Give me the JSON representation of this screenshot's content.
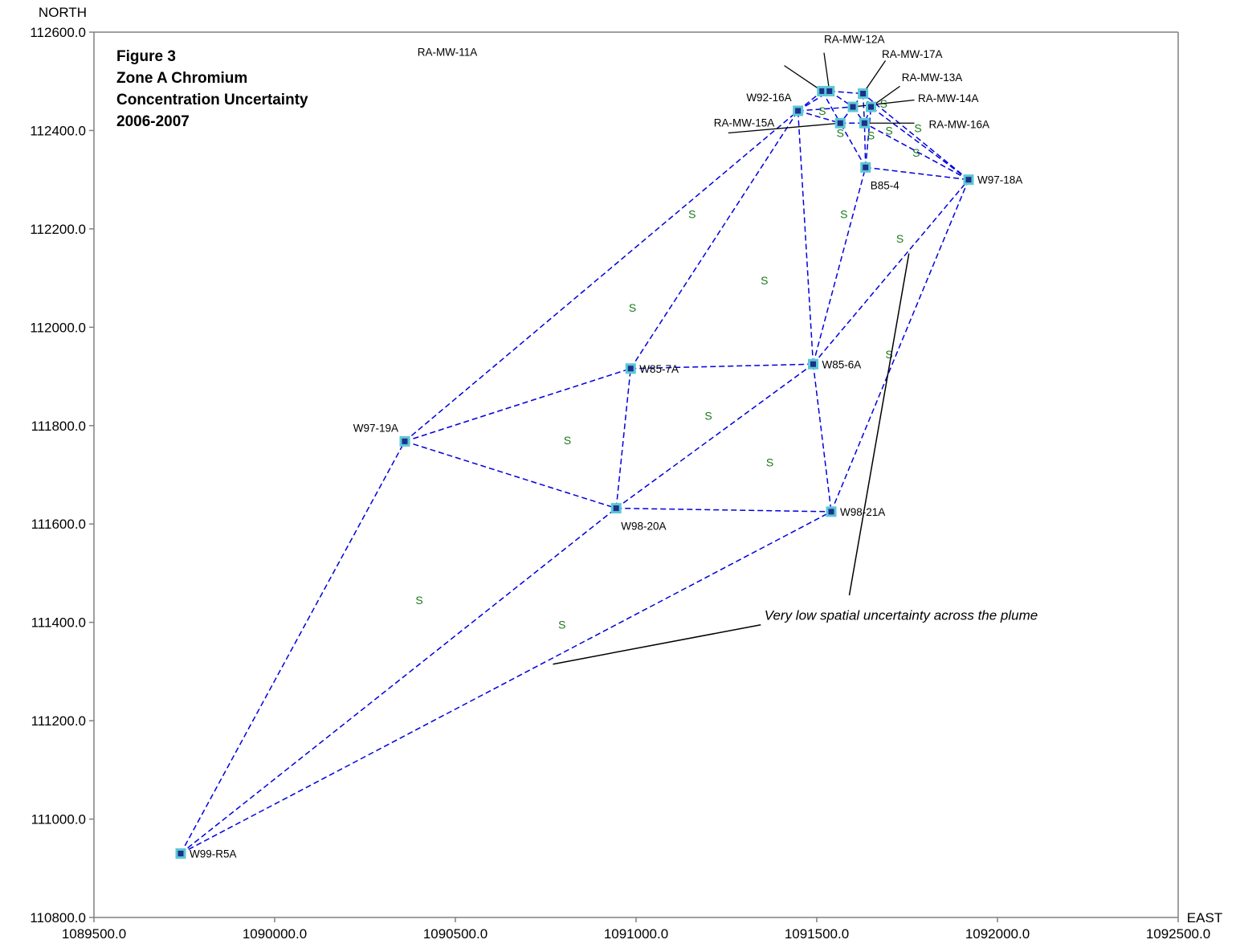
{
  "chart_data": {
    "type": "scatter",
    "title_lines": [
      "Figure 3",
      "Zone A Chromium",
      "Concentration Uncertainty",
      "2006-2007"
    ],
    "xlabel": "EAST",
    "ylabel": "NORTH",
    "xlim": [
      1089500.0,
      1092500.0
    ],
    "ylim": [
      110800.0,
      112600.0
    ],
    "x_ticks": [
      "1089500.0",
      "1090000.0",
      "1090500.0",
      "1091000.0",
      "1091500.0",
      "1092000.0",
      "1092500.0"
    ],
    "y_ticks": [
      "110800.0",
      "111000.0",
      "111200.0",
      "111400.0",
      "111600.0",
      "111800.0",
      "112000.0",
      "112200.0",
      "112400.0",
      "112600.0"
    ],
    "x_tick_values": [
      1089500,
      1090000,
      1090500,
      1091000,
      1091500,
      1092000,
      1092500
    ],
    "y_tick_values": [
      110800,
      111000,
      111200,
      111400,
      111600,
      111800,
      112000,
      112200,
      112400,
      112600
    ],
    "colors": {
      "edge": "#0000dd",
      "marker_outer": "#5bc8d6",
      "marker_inner": "#1f2f8a",
      "s_mark": "#1a7a1a",
      "axis": "#808080"
    },
    "wells": [
      {
        "id": "W99-R5A",
        "label": "W99-R5A",
        "x": 1089740,
        "y": 110930,
        "label_at": "right"
      },
      {
        "id": "W97-19A",
        "label": "W97-19A",
        "x": 1090360,
        "y": 111768,
        "label_at": "above-left"
      },
      {
        "id": "W98-20A",
        "label": "W98-20A",
        "x": 1090945,
        "y": 111632,
        "label_at": "below"
      },
      {
        "id": "W85-7A",
        "label": "W85-7A",
        "x": 1090985,
        "y": 111916,
        "label_at": "right"
      },
      {
        "id": "W85-6A",
        "label": "W85-6A",
        "x": 1091490,
        "y": 111925,
        "label_at": "right"
      },
      {
        "id": "W98-21A",
        "label": "W98-21A",
        "x": 1091540,
        "y": 111625,
        "label_at": "right"
      },
      {
        "id": "W92-16A",
        "label": "W92-16A",
        "x": 1091448,
        "y": 112440,
        "label_at": "above-left"
      },
      {
        "id": "B85-4",
        "label": "B85-4",
        "x": 1091635,
        "y": 112325,
        "label_at": "below"
      },
      {
        "id": "W97-18A",
        "label": "W97-18A",
        "x": 1091920,
        "y": 112300,
        "label_at": "right"
      },
      {
        "id": "RA-MW-11A",
        "label": "RA-MW-11A",
        "x": 1091515,
        "y": 112480,
        "label_at": "leader"
      },
      {
        "id": "RA-MW-12A",
        "label": "RA-MW-12A",
        "x": 1091535,
        "y": 112480,
        "label_at": "leader"
      },
      {
        "id": "RA-MW-17A",
        "label": "RA-MW-17A",
        "x": 1091628,
        "y": 112475,
        "label_at": "leader"
      },
      {
        "id": "RA-MW-13A",
        "label": "RA-MW-13A",
        "x": 1091650,
        "y": 112448,
        "label_at": "leader"
      },
      {
        "id": "RA-MW-14A",
        "label": "RA-MW-14A",
        "x": 1091600,
        "y": 112448,
        "label_at": "leader"
      },
      {
        "id": "RA-MW-15A",
        "label": "RA-MW-15A",
        "x": 1091565,
        "y": 112415,
        "label_at": "leader"
      },
      {
        "id": "RA-MW-16A",
        "label": "RA-MW-16A",
        "x": 1091632,
        "y": 112415,
        "label_at": "leader"
      }
    ],
    "edges": [
      [
        "W99-R5A",
        "W97-19A"
      ],
      [
        "W99-R5A",
        "W98-20A"
      ],
      [
        "W99-R5A",
        "W98-21A"
      ],
      [
        "W97-19A",
        "W98-20A"
      ],
      [
        "W97-19A",
        "W85-7A"
      ],
      [
        "W97-19A",
        "W92-16A"
      ],
      [
        "W98-20A",
        "W85-7A"
      ],
      [
        "W98-20A",
        "W98-21A"
      ],
      [
        "W98-20A",
        "W85-6A"
      ],
      [
        "W85-7A",
        "W85-6A"
      ],
      [
        "W85-7A",
        "W92-16A"
      ],
      [
        "W85-6A",
        "W98-21A"
      ],
      [
        "W85-6A",
        "W92-16A"
      ],
      [
        "W85-6A",
        "B85-4"
      ],
      [
        "W85-6A",
        "W97-18A"
      ],
      [
        "W98-21A",
        "W97-18A"
      ],
      [
        "B85-4",
        "W97-18A"
      ],
      [
        "B85-4",
        "RA-MW-15A"
      ],
      [
        "B85-4",
        "RA-MW-16A"
      ],
      [
        "B85-4",
        "RA-MW-13A"
      ],
      [
        "W97-18A",
        "RA-MW-17A"
      ],
      [
        "W97-18A",
        "RA-MW-13A"
      ],
      [
        "W97-18A",
        "RA-MW-16A"
      ],
      [
        "W92-16A",
        "RA-MW-11A"
      ],
      [
        "W92-16A",
        "RA-MW-15A"
      ],
      [
        "W92-16A",
        "RA-MW-14A"
      ],
      [
        "W92-16A",
        "RA-MW-12A"
      ],
      [
        "RA-MW-11A",
        "RA-MW-12A"
      ],
      [
        "RA-MW-11A",
        "RA-MW-15A"
      ],
      [
        "RA-MW-12A",
        "RA-MW-17A"
      ],
      [
        "RA-MW-12A",
        "RA-MW-14A"
      ],
      [
        "RA-MW-17A",
        "RA-MW-13A"
      ],
      [
        "RA-MW-17A",
        "RA-MW-14A"
      ],
      [
        "RA-MW-17A",
        "RA-MW-16A"
      ],
      [
        "RA-MW-13A",
        "RA-MW-16A"
      ],
      [
        "RA-MW-14A",
        "RA-MW-15A"
      ],
      [
        "RA-MW-14A",
        "RA-MW-16A"
      ],
      [
        "RA-MW-15A",
        "RA-MW-16A"
      ]
    ],
    "s_points": [
      {
        "x": 1090400,
        "y": 111445
      },
      {
        "x": 1090795,
        "y": 111395
      },
      {
        "x": 1090810,
        "y": 111770
      },
      {
        "x": 1090990,
        "y": 112040
      },
      {
        "x": 1091155,
        "y": 112230
      },
      {
        "x": 1091200,
        "y": 111820
      },
      {
        "x": 1091355,
        "y": 112095
      },
      {
        "x": 1091370,
        "y": 111725
      },
      {
        "x": 1091575,
        "y": 112230
      },
      {
        "x": 1091700,
        "y": 111945
      },
      {
        "x": 1091730,
        "y": 112180
      },
      {
        "x": 1091515,
        "y": 112440
      },
      {
        "x": 1091565,
        "y": 112395
      },
      {
        "x": 1091650,
        "y": 112390
      },
      {
        "x": 1091700,
        "y": 112400
      },
      {
        "x": 1091780,
        "y": 112405
      },
      {
        "x": 1091775,
        "y": 112355
      },
      {
        "x": 1091685,
        "y": 112455
      }
    ],
    "leader_labels": [
      {
        "well": "RA-MW-11A",
        "label": "RA-MW-11A",
        "text_x": 1090395,
        "text_y": 112552,
        "line_from": [
          1091410,
          112532
        ]
      },
      {
        "well": "RA-MW-12A",
        "label": "RA-MW-12A",
        "text_x": 1091520,
        "text_y": 112578,
        "line_from": [
          1091520,
          112558
        ]
      },
      {
        "well": "RA-MW-17A",
        "label": "RA-MW-17A",
        "text_x": 1091680,
        "text_y": 112548,
        "line_from": [
          1091690,
          112542
        ]
      },
      {
        "well": "RA-MW-13A",
        "label": "RA-MW-13A",
        "text_x": 1091735,
        "text_y": 112500,
        "line_from": [
          1091730,
          112490
        ]
      },
      {
        "well": "RA-MW-14A",
        "label": "RA-MW-14A",
        "text_x": 1091780,
        "text_y": 112458,
        "line_from": [
          1091770,
          112462
        ]
      },
      {
        "well": "RA-MW-15A",
        "label": "RA-MW-15A",
        "text_x": 1091215,
        "text_y": 112408,
        "line_from": [
          1091255,
          112395
        ]
      },
      {
        "well": "RA-MW-16A",
        "label": "RA-MW-16A",
        "text_x": 1091810,
        "text_y": 112405,
        "line_from": [
          1091770,
          112415
        ]
      }
    ],
    "annotation": {
      "text": "Very low spatial uncertainty across the plume",
      "x": 1091355,
      "y": 111405,
      "pointers": [
        {
          "from": [
            1091345,
            111395
          ],
          "to": [
            1090770,
            111315
          ]
        },
        {
          "from": [
            1091590,
            111455
          ],
          "to": [
            1091755,
            112150
          ]
        }
      ]
    }
  }
}
